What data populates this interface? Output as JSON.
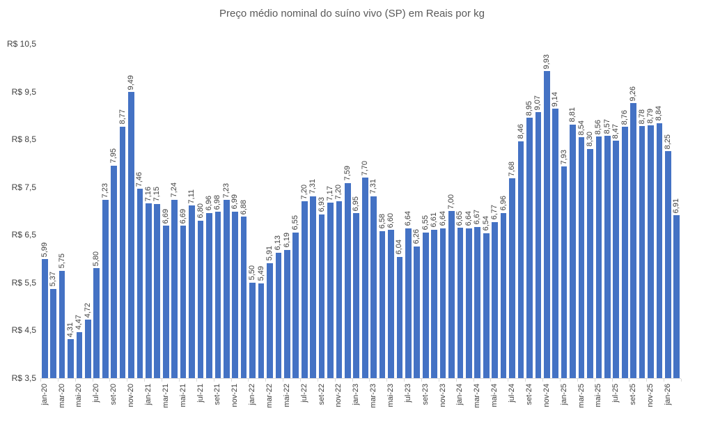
{
  "chart_data": {
    "type": "bar",
    "title": "Preço médio nominal do suíno vivo (SP) em Reais por kg",
    "xlabel": "",
    "ylabel": "",
    "grid": false,
    "legend": "none",
    "currency_prefix": "R$",
    "decimal_separator": ",",
    "bar_color": "#4472C4",
    "label_color": "#404040",
    "title_color": "#595959",
    "axis_line_color": "#d9d9d9",
    "y_axis": {
      "min": 3.5,
      "max": 10.5,
      "step": 1.0,
      "tick_labels": [
        "R$ 10,5",
        "R$ 9,5",
        "R$ 8,5",
        "R$ 7,5",
        "R$ 6,5",
        "R$ 5,5",
        "R$ 4,5",
        "R$ 3,5"
      ]
    },
    "x_tick_interval": 2,
    "x": [
      "jan-20",
      "fev-20",
      "mar-20",
      "abr-20",
      "mai-20",
      "jun-20",
      "jul-20",
      "ago-20",
      "set-20",
      "out-20",
      "nov-20",
      "dez-20",
      "jan-21",
      "fev-21",
      "mar-21",
      "abr-21",
      "mai-21",
      "jun-21",
      "jul-21",
      "ago-21",
      "set-21",
      "out-21",
      "nov-21",
      "dez-21",
      "jan-22",
      "fev-22",
      "mar-22",
      "abr-22",
      "mai-22",
      "jun-22",
      "jul-22",
      "ago-22",
      "set-22",
      "out-22",
      "nov-22",
      "dez-22",
      "jan-23",
      "fev-23",
      "mar-23",
      "abr-23",
      "mai-23",
      "jun-23",
      "jul-23",
      "ago-23",
      "set-23",
      "out-23",
      "nov-23",
      "dez-23",
      "jan-24",
      "fev-24",
      "mar-24",
      "abr-24",
      "mai-24",
      "jun-24",
      "jul-24",
      "ago-24",
      "set-24",
      "out-24",
      "nov-24",
      "dez-24",
      "jan-25",
      "fev-25",
      "mar-25",
      "abr-25",
      "mai-25",
      "jun-25",
      "jul-25",
      "ago-25",
      "set-25",
      "out-25",
      "nov-25",
      "dez-25",
      "jan-26",
      "fev-26"
    ],
    "values": [
      5.99,
      5.37,
      5.75,
      4.31,
      4.47,
      4.72,
      5.8,
      7.23,
      7.95,
      8.77,
      9.49,
      7.46,
      7.16,
      7.15,
      6.69,
      7.24,
      6.69,
      7.11,
      6.8,
      6.96,
      6.98,
      7.23,
      6.99,
      6.88,
      5.5,
      5.49,
      5.91,
      6.13,
      6.19,
      6.55,
      7.2,
      7.31,
      6.93,
      7.17,
      7.2,
      7.59,
      6.95,
      7.7,
      7.31,
      6.58,
      6.6,
      6.04,
      6.64,
      6.26,
      6.55,
      6.61,
      6.64,
      7.0,
      6.65,
      6.64,
      6.67,
      6.54,
      6.77,
      6.96,
      7.68,
      8.46,
      8.95,
      9.07,
      9.93,
      9.14,
      7.93,
      8.81,
      8.54,
      8.3,
      8.56,
      8.57,
      8.47,
      8.76,
      9.26,
      8.78,
      8.79,
      8.84,
      8.25,
      6.91
    ]
  }
}
